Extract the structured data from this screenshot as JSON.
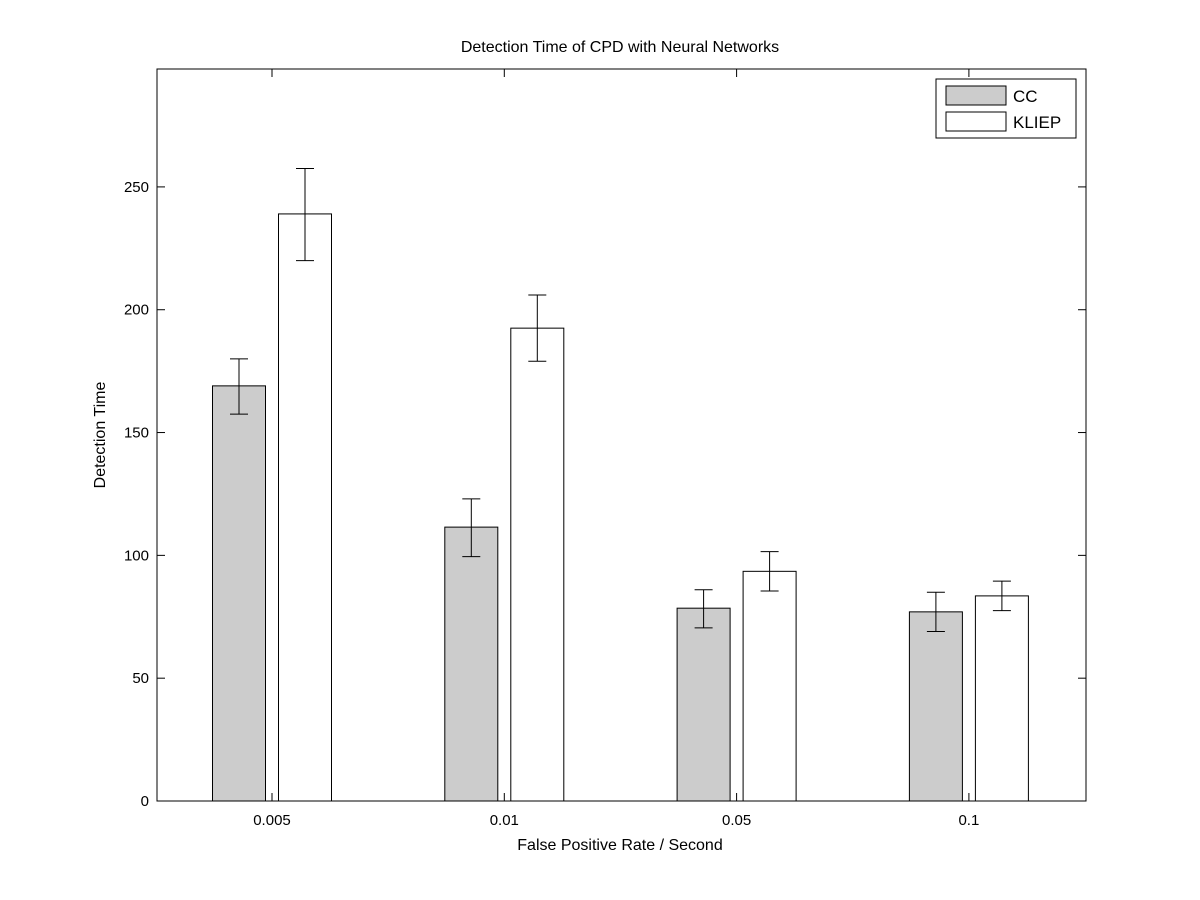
{
  "chart_data": {
    "type": "bar",
    "title": "Detection Time of CPD with Neural Networks",
    "xlabel": "False Positive Rate / Second",
    "ylabel": "Detection Time",
    "categories": [
      "0.005",
      "0.01",
      "0.05",
      "0.1"
    ],
    "ylim": [
      0,
      298
    ],
    "yticks": [
      0,
      50,
      100,
      150,
      200,
      250
    ],
    "series": [
      {
        "name": "CC",
        "color": "#cccccc",
        "values": [
          169,
          111.5,
          78.5,
          77
        ],
        "error_low": [
          157.5,
          99.5,
          70.5,
          69
        ],
        "error_high": [
          180,
          123,
          86,
          85
        ]
      },
      {
        "name": "KLIEP",
        "color": "#ffffff",
        "values": [
          239,
          192.5,
          93.5,
          83.5
        ],
        "error_low": [
          220,
          179,
          85.5,
          77.5
        ],
        "error_high": [
          257.5,
          206,
          101.5,
          89.5
        ]
      }
    ],
    "legend": "top-right",
    "grid": false
  }
}
